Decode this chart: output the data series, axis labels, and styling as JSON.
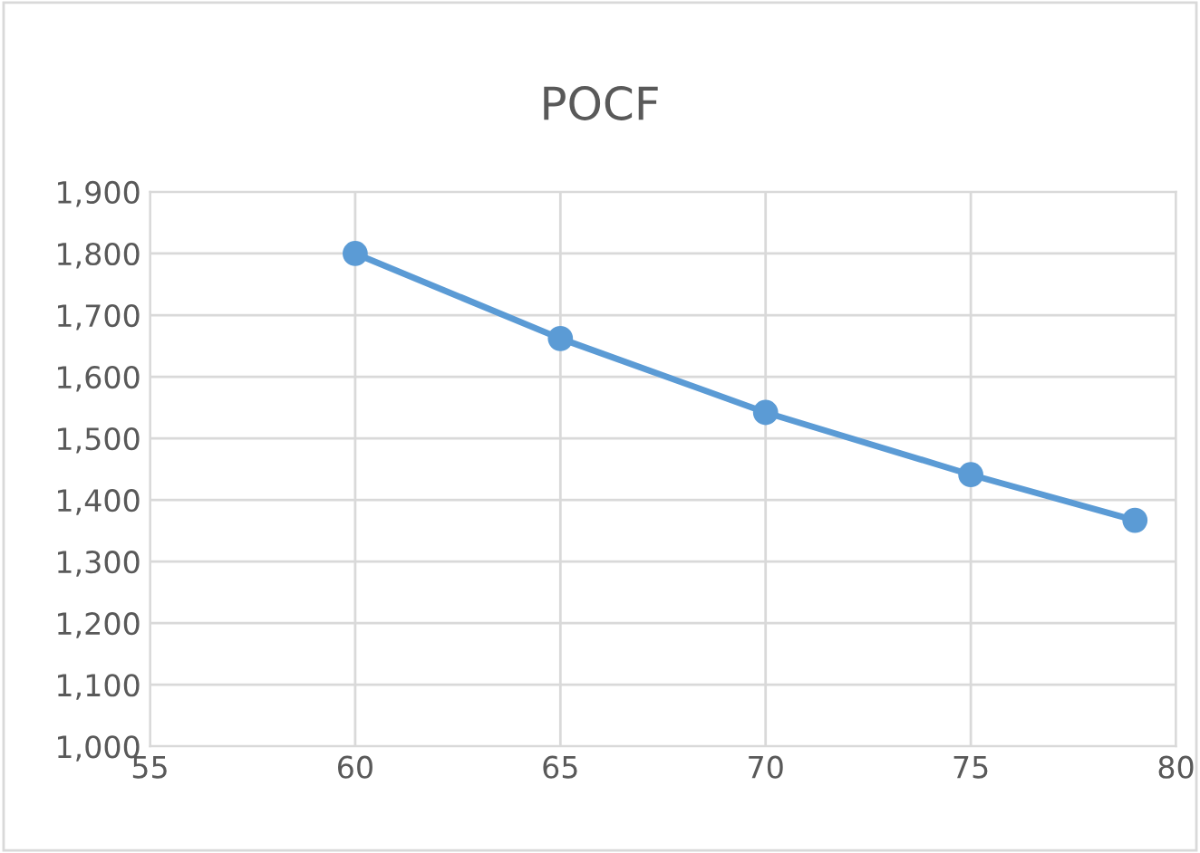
{
  "chart_data": {
    "type": "line",
    "title": "POCF",
    "x": [
      60,
      65,
      70,
      75,
      79
    ],
    "series": [
      {
        "color": "#5b9bd5",
        "values": [
          1800,
          1662,
          1542,
          1441,
          1367
        ]
      }
    ],
    "xlim": [
      55,
      80
    ],
    "xticks": [
      55,
      60,
      65,
      70,
      75,
      80
    ],
    "ylim": [
      1000,
      1900
    ],
    "yticks": [
      {
        "value": 1000,
        "label": "1,000"
      },
      {
        "value": 1100,
        "label": "1,100"
      },
      {
        "value": 1200,
        "label": "1,200"
      },
      {
        "value": 1300,
        "label": "1,300"
      },
      {
        "value": 1400,
        "label": "1,400"
      },
      {
        "value": 1500,
        "label": "1,500"
      },
      {
        "value": 1600,
        "label": "1,600"
      },
      {
        "value": 1700,
        "label": "1,700"
      },
      {
        "value": 1800,
        "label": "1,800"
      },
      {
        "value": 1900,
        "label": "1,900"
      }
    ],
    "grid": true,
    "marker": "circle",
    "line_style": "solid",
    "legend": false
  }
}
